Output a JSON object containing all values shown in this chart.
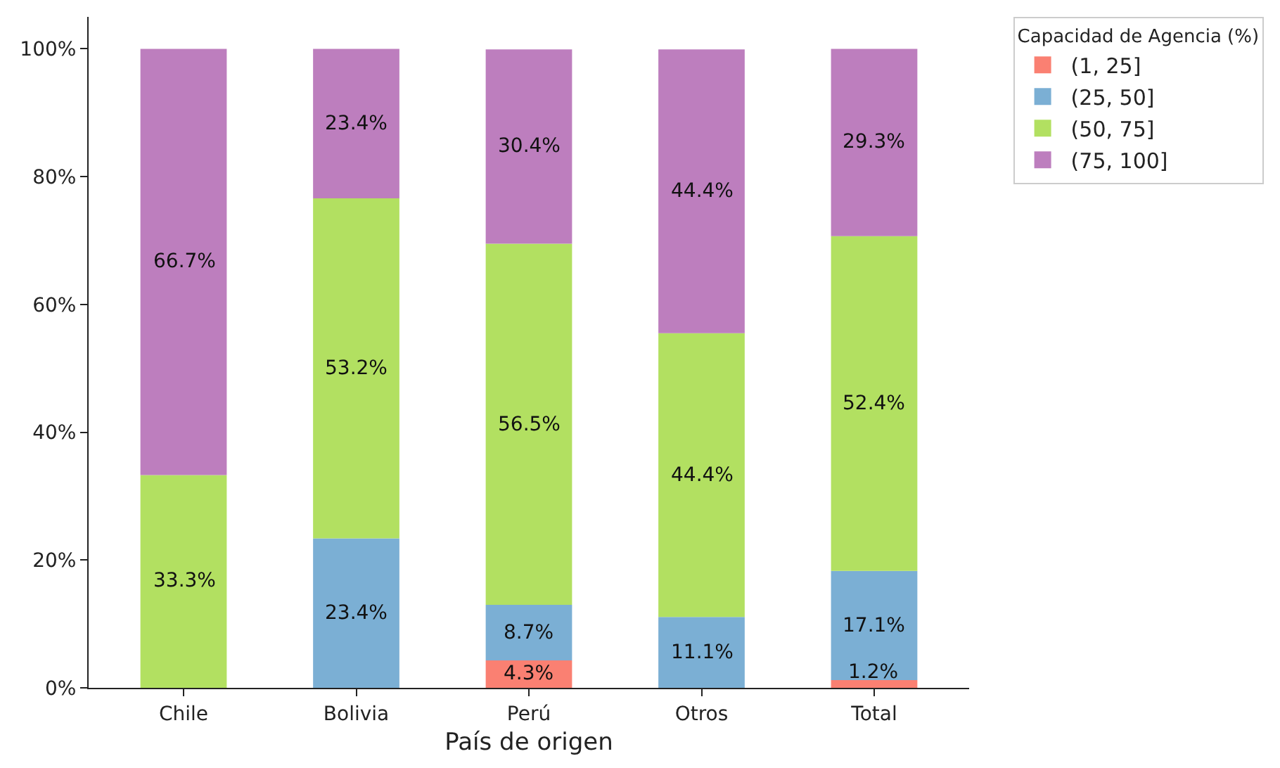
{
  "chart_data": {
    "type": "bar",
    "stacked": true,
    "xlabel": "País de origen",
    "legend_title": "Capacidad de Agencia (%)",
    "legend": "top right",
    "categories": [
      "Chile",
      "Bolivia",
      "Perú",
      "Otros",
      "Total"
    ],
    "series": [
      {
        "name": "(1, 25]",
        "color": "#fa8072",
        "values": [
          null,
          null,
          4.3,
          null,
          1.2
        ],
        "value_labels": [
          null,
          null,
          "4.3%",
          null,
          "1.2%"
        ]
      },
      {
        "name": "(25, 50]",
        "color": "#7bafd4",
        "values": [
          null,
          23.4,
          8.7,
          11.1,
          17.1
        ],
        "value_labels": [
          null,
          "23.4%",
          "8.7%",
          "11.1%",
          "17.1%"
        ]
      },
      {
        "name": "(50, 75]",
        "color": "#b2e061",
        "values": [
          33.3,
          53.2,
          56.5,
          44.4,
          52.4
        ],
        "value_labels": [
          "33.3%",
          "53.2%",
          "56.5%",
          "44.4%",
          "52.4%"
        ]
      },
      {
        "name": "(75, 100]",
        "color": "#bd7ebe",
        "values": [
          66.7,
          23.4,
          30.4,
          44.4,
          29.3
        ],
        "value_labels": [
          "66.7%",
          "23.4%",
          "30.4%",
          "44.4%",
          "29.3%"
        ]
      }
    ],
    "ylim": [
      0,
      105
    ],
    "yticks": [
      {
        "value": 0,
        "label": "0%"
      },
      {
        "value": 20,
        "label": "20%"
      },
      {
        "value": 40,
        "label": "40%"
      },
      {
        "value": 60,
        "label": "60%"
      },
      {
        "value": 80,
        "label": "80%"
      },
      {
        "value": 100,
        "label": "100%"
      }
    ]
  }
}
